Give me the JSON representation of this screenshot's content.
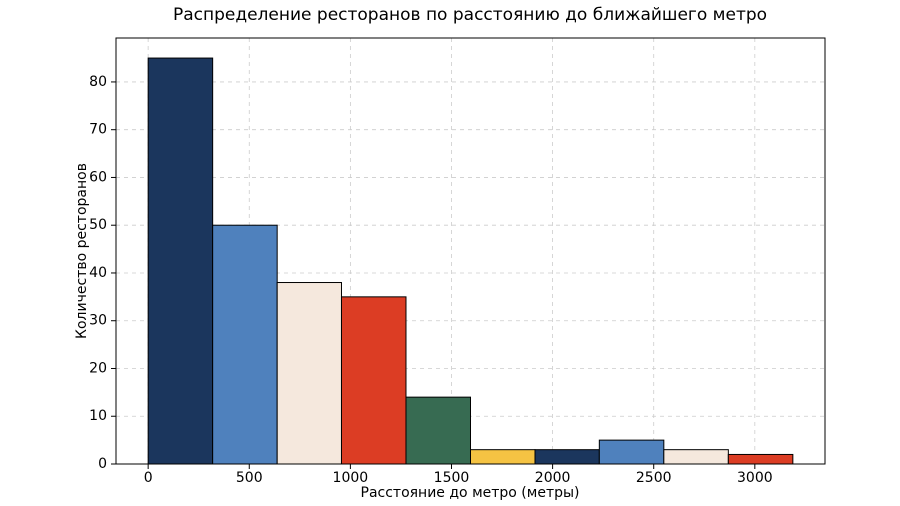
{
  "chart_data": {
    "type": "histogram",
    "title": "Распределение ресторанов по расстоянию до ближайшего метро",
    "x_label": "Расстояние до метро (метры)",
    "y_label": "Количество ресторанов",
    "bins": [
      0,
      319,
      638,
      956,
      1275,
      1594,
      1913,
      2231,
      2550,
      2869,
      3188
    ],
    "values": [
      85,
      50,
      38,
      35,
      14,
      3,
      3,
      5,
      3,
      2
    ],
    "colors": [
      "#1b365d",
      "#4f81bd",
      "#f5e8dd",
      "#dc3d24",
      "#376b52",
      "#f5c343",
      "#1b365d",
      "#4f81bd",
      "#f5e8dd",
      "#dc3d24"
    ],
    "xlim": [
      -159,
      3347
    ],
    "xticks": [
      0,
      500,
      1000,
      1500,
      2000,
      2500,
      3000
    ],
    "ylim": [
      0,
      89.2
    ],
    "yticks": [
      0,
      10,
      20,
      30,
      40,
      50,
      60,
      70,
      80
    ],
    "grid": true
  }
}
